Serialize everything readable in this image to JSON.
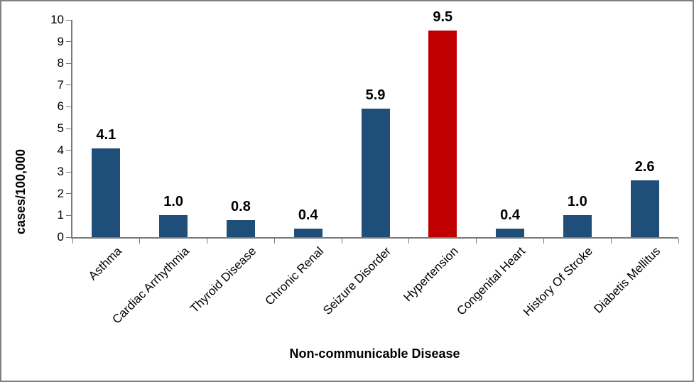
{
  "chart_data": {
    "type": "bar",
    "title": "",
    "xlabel": "Non-communicable Disease",
    "ylabel": "cases/100,000",
    "categories": [
      "Asthma",
      "Cardiac Arrhythmia",
      "Thyroid Disease",
      "Chronic Renal",
      "Seizure Disorder",
      "Hypertension",
      "Congenital Heart",
      "History Of Stroke",
      "Diabetis Mellitus"
    ],
    "values": [
      4.1,
      1.0,
      0.8,
      0.4,
      5.9,
      9.5,
      0.4,
      1.0,
      2.6
    ],
    "value_labels": [
      "4.1",
      "1.0",
      "0.8",
      "0.4",
      "5.9",
      "9.5",
      "0.4",
      "1.0",
      "2.6"
    ],
    "ylim": [
      0,
      10
    ],
    "ytick_step": 1,
    "ytick_labels": [
      "0",
      "1",
      "2",
      "3",
      "4",
      "5",
      "6",
      "7",
      "8",
      "9",
      "10"
    ],
    "bar_color": "#1F4E79",
    "highlight_color": "#C00000",
    "highlight_index": 5,
    "grid": false,
    "legend_position": "none",
    "frame_border_color": "#808080",
    "axis_color": "#7a7a7a"
  }
}
